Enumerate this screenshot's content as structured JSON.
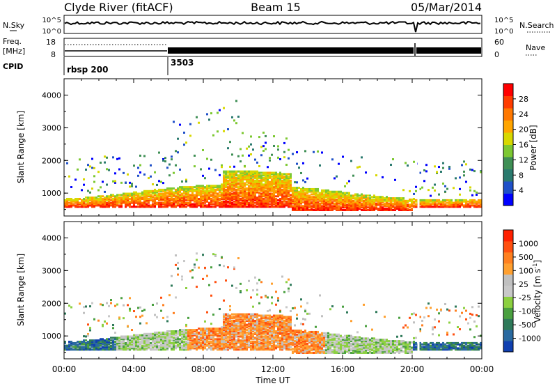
{
  "header": {
    "station": "Clyde River (fitACF)",
    "beam": "Beam 15",
    "date": "05/Mar/2014"
  },
  "status_panel": {
    "nsky_label": "N.Sky",
    "nsky_ticks": [
      "10^5",
      "10^0"
    ],
    "nsearch_label": "N.Search",
    "freq_label_line1": "Freq.",
    "freq_label_line2": "[MHz]",
    "freq_ticks": [
      "18",
      "8"
    ],
    "nave_ticks": [
      "60",
      "0"
    ],
    "nave_label": "Nave",
    "cpid_label": "CPID",
    "cpid_segments": [
      {
        "label": "rbsp 200",
        "start_hour": 0
      },
      {
        "label": "3503",
        "start_hour": 6
      }
    ]
  },
  "chart_data": [
    {
      "type": "heatmap",
      "name": "power",
      "ylabel": "Slant Range [km]",
      "ylim": [
        300,
        4500
      ],
      "yticks": [
        "1000",
        "2000",
        "3000",
        "4000"
      ],
      "xlim": [
        0,
        24
      ],
      "colorbar_label": "Power [dB]",
      "colorbar_ticks": [
        "4",
        "8",
        "12",
        "16",
        "20",
        "24",
        "28"
      ],
      "colorbar_colors": [
        "#0000ff",
        "#1f50c8",
        "#2a7a6e",
        "#3f8f55",
        "#7dc832",
        "#d8d800",
        "#ffa500",
        "#ff7800",
        "#ff3c00",
        "#ff0000"
      ]
    },
    {
      "type": "heatmap",
      "name": "velocity",
      "ylabel": "Slant Range [km]",
      "ylim": [
        300,
        4500
      ],
      "yticks": [
        "1000",
        "2000",
        "3000",
        "4000"
      ],
      "xlim": [
        0,
        24
      ],
      "colorbar_label": "Velocity [m s",
      "colorbar_label_sup": "-1",
      "colorbar_label_end": "]",
      "colorbar_ticks": [
        "1000",
        "500",
        "100",
        "25",
        "-25",
        "-100",
        "-500",
        "-1000"
      ],
      "colorbar_colors": [
        "#1040b0",
        "#2a6aa0",
        "#2f7a5a",
        "#4aa040",
        "#8cd040",
        "#c8c8c8",
        "#c0c0c0",
        "#ffa030",
        "#ff8020",
        "#ff5010",
        "#ff2000"
      ]
    }
  ],
  "x_axis": {
    "label": "Time UT",
    "ticks": [
      "00:00",
      "04:00",
      "08:00",
      "12:00",
      "16:00",
      "20:00",
      "00:00"
    ]
  }
}
